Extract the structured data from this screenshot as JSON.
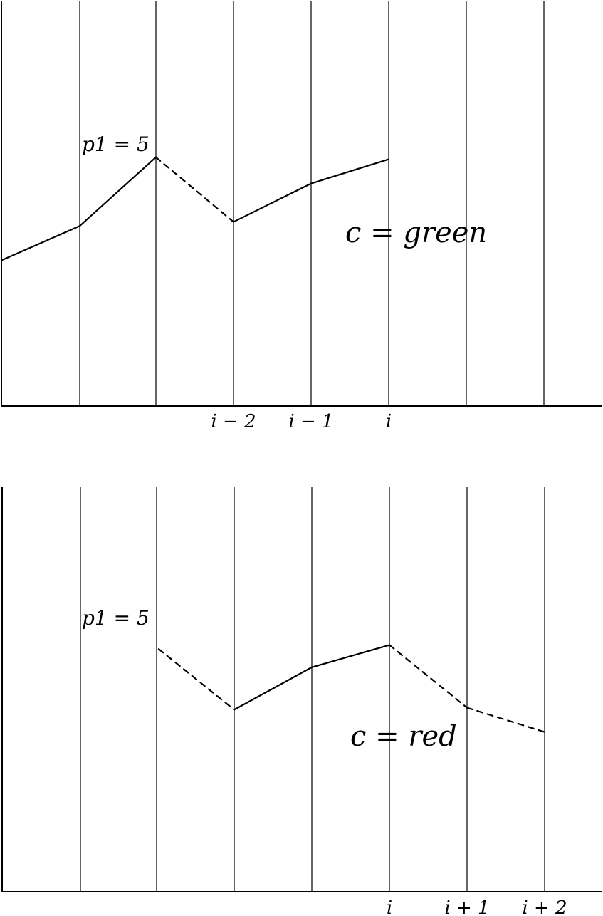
{
  "panels": [
    {
      "name": "top",
      "peak_label": "p1 = 5",
      "caption": "c = green",
      "tick_labels": [
        "",
        "",
        "",
        "i − 2",
        "i − 1",
        "i",
        "",
        ""
      ],
      "path": [
        {
          "col": 0,
          "level": 36.0
        },
        {
          "col": 1,
          "level": 44.5
        },
        {
          "col": 2,
          "level": 61.5
        },
        {
          "col": 3,
          "level": 45.5,
          "dashed": true
        },
        {
          "col": 4,
          "level": 55.0
        },
        {
          "col": 5,
          "level": 61.0
        }
      ]
    },
    {
      "name": "bottom",
      "peak_label": "p1 = 5",
      "caption": "c = red",
      "tick_labels": [
        "",
        "",
        "",
        "",
        "",
        "i",
        "i + 1",
        "i + 2"
      ],
      "path": [
        {
          "col": 2,
          "level": 60.0
        },
        {
          "col": 3,
          "level": 45.0,
          "dashed": true
        },
        {
          "col": 4,
          "level": 55.5
        },
        {
          "col": 5,
          "level": 61.0
        },
        {
          "col": 6,
          "level": 45.5,
          "dashed": true
        },
        {
          "col": 7,
          "level": 39.5,
          "dashed": true
        }
      ]
    }
  ]
}
